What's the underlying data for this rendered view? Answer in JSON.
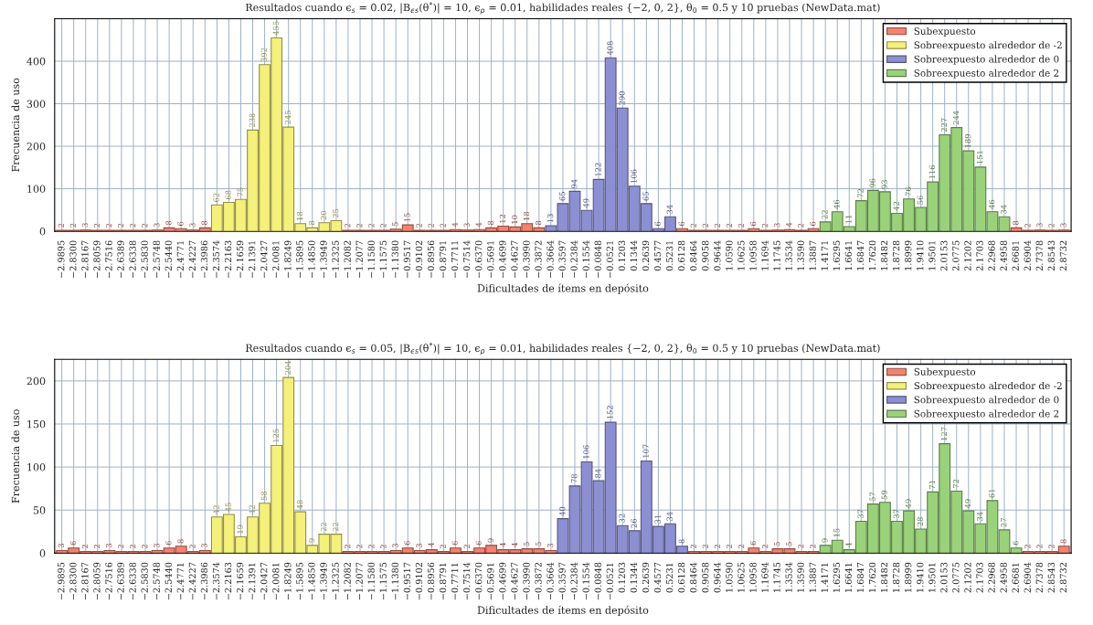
{
  "chart_data": [
    {
      "type": "bar",
      "title": "Resultados cuando ϵ$_{s}$ = 0.02, |B$_{ϵs}$(θ$^{*}$)| = 10, ϵ$_{p}$ = 0.01, habilidades reales {−2, 0, 2}, θ$_{0}$ = 0.5 y 10 pruebas (NewData.mat)",
      "xlabel": "Dificultades de ítems en depósito",
      "ylabel": "Frecuencia de uso",
      "categories": [
        "−2.9895",
        "−2.8300",
        "−2.8167",
        "−2.8059",
        "−2.7516",
        "−2.6389",
        "−2.6338",
        "−2.5830",
        "−2.5748",
        "−2.5440",
        "−2.4771",
        "−2.4227",
        "−2.3986",
        "−2.3574",
        "−2.2163",
        "−2.1659",
        "−2.1391",
        "−2.0427",
        "−2.0081",
        "−1.8249",
        "−1.5895",
        "−1.4850",
        "−1.3949",
        "−1.2325",
        "−1.2082",
        "−1.2077",
        "−1.1580",
        "−1.1575",
        "−1.1380",
        "−0.9517",
        "−0.9102",
        "−0.8956",
        "−0.8791",
        "−0.7711",
        "−0.7514",
        "−0.6370",
        "−0.5691",
        "−0.4699",
        "−0.4627",
        "−0.3990",
        "−0.3872",
        "−0.3664",
        "−0.3597",
        "−0.2384",
        "−0.1554",
        "−0.0848",
        "−0.0521",
        "0.1203",
        "0.1344",
        "0.2639",
        "0.4577",
        "0.5231",
        "0.6128",
        "0.8464",
        "0.9058",
        "0.9644",
        "1.0590",
        "1.0625",
        "1.0958",
        "1.1694",
        "1.1745",
        "1.3534",
        "1.3590",
        "1.3887",
        "1.4171",
        "1.6295",
        "1.6641",
        "1.6847",
        "1.7620",
        "1.8482",
        "1.8728",
        "1.8999",
        "1.9410",
        "1.9501",
        "2.0153",
        "2.0775",
        "2.1202",
        "2.1703",
        "2.2968",
        "2.4958",
        "2.6681",
        "2.6904",
        "2.7378",
        "2.8543",
        "2.8732"
      ],
      "series": [
        {
          "name": "Subexpuesto",
          "color": "#f4826e",
          "values": [
            2,
            2,
            3,
            2,
            2,
            2,
            2,
            2,
            3,
            8,
            6,
            3,
            8,
            null,
            null,
            null,
            null,
            null,
            null,
            null,
            null,
            null,
            null,
            null,
            2,
            2,
            2,
            2,
            5,
            15,
            2,
            2,
            2,
            4,
            3,
            4,
            8,
            12,
            10,
            18,
            8,
            null,
            null,
            null,
            null,
            null,
            null,
            null,
            null,
            null,
            null,
            null,
            6,
            2,
            2,
            2,
            2,
            2,
            6,
            2,
            3,
            4,
            2,
            6,
            null,
            null,
            null,
            null,
            null,
            null,
            null,
            null,
            null,
            null,
            null,
            null,
            null,
            null,
            null,
            null,
            8,
            2,
            3,
            2,
            3
          ]
        },
        {
          "name": "Sobreexpuesto alrededor de -2",
          "color": "#f5f07a",
          "values": [
            null,
            null,
            null,
            null,
            null,
            null,
            null,
            null,
            null,
            null,
            null,
            null,
            null,
            62,
            68,
            75,
            238,
            392,
            455,
            245,
            18,
            8,
            20,
            25,
            null,
            null,
            null,
            null,
            null,
            null,
            null,
            null,
            null,
            null,
            null,
            null,
            null,
            null,
            null,
            null,
            null,
            null,
            null,
            null,
            null,
            null,
            null,
            null,
            null,
            null,
            null,
            null,
            null,
            null,
            null,
            null,
            null,
            null,
            null,
            null,
            null,
            null,
            null,
            null,
            null,
            null,
            null,
            null,
            null,
            null,
            null,
            null,
            null,
            null,
            null,
            null,
            null,
            null,
            null,
            null,
            null,
            null,
            null,
            null,
            null
          ]
        },
        {
          "name": "Sobreexpuesto alrededor de 0",
          "color": "#8c8fd2",
          "values": [
            null,
            null,
            null,
            null,
            null,
            null,
            null,
            null,
            null,
            null,
            null,
            null,
            null,
            null,
            null,
            null,
            null,
            null,
            null,
            null,
            null,
            null,
            null,
            null,
            null,
            null,
            null,
            null,
            null,
            null,
            null,
            null,
            null,
            null,
            null,
            null,
            null,
            null,
            null,
            null,
            null,
            13,
            65,
            94,
            49,
            122,
            408,
            290,
            106,
            65,
            6,
            34,
            null,
            null,
            null,
            null,
            null,
            null,
            null,
            null,
            null,
            null,
            null,
            null,
            null,
            null,
            null,
            null,
            null,
            null,
            null,
            null,
            null,
            null,
            null,
            null,
            null,
            null,
            null,
            null,
            null,
            null,
            null,
            null,
            null
          ]
        },
        {
          "name": "Sobreexpuesto alrededor de 2",
          "color": "#9ad27a",
          "values": [
            null,
            null,
            null,
            null,
            null,
            null,
            null,
            null,
            null,
            null,
            null,
            null,
            null,
            null,
            null,
            null,
            null,
            null,
            null,
            null,
            null,
            null,
            null,
            null,
            null,
            null,
            null,
            null,
            null,
            null,
            null,
            null,
            null,
            null,
            null,
            null,
            null,
            null,
            null,
            null,
            null,
            null,
            null,
            null,
            null,
            null,
            null,
            null,
            null,
            null,
            null,
            null,
            null,
            null,
            null,
            null,
            null,
            null,
            null,
            null,
            null,
            null,
            null,
            null,
            22,
            46,
            11,
            72,
            96,
            93,
            42,
            76,
            56,
            116,
            227,
            244,
            189,
            151,
            46,
            34,
            null,
            null,
            null,
            null,
            null
          ]
        }
      ],
      "ylim": [
        0,
        500
      ],
      "yticks": [
        0,
        100,
        200,
        300,
        400
      ],
      "grid": true,
      "legend": "top right",
      "data_labels": true
    },
    {
      "type": "bar",
      "title": "Resultados cuando ϵ$_{s}$ = 0.05, |B$_{ϵs}$(θ$^{*}$)| = 10, ϵ$_{p}$ = 0.01, habilidades reales {−2, 0, 2}, θ$_{0}$ = 0.5 y 10 pruebas (NewData.mat)",
      "xlabel": "Dificultades de ítems en depósito",
      "ylabel": "Frecuencia de uso",
      "categories": [
        "−2.9895",
        "−2.8300",
        "−2.8167",
        "−2.8059",
        "−2.7516",
        "−2.6389",
        "−2.6338",
        "−2.5830",
        "−2.5748",
        "−2.5440",
        "−2.4771",
        "−2.4227",
        "−2.3986",
        "−2.3574",
        "−2.2163",
        "−2.1659",
        "−2.1391",
        "−2.0427",
        "−2.0081",
        "−1.8249",
        "−1.5895",
        "−1.4850",
        "−1.3949",
        "−1.2325",
        "−1.2082",
        "−1.2077",
        "−1.1580",
        "−1.1575",
        "−1.1380",
        "−0.9517",
        "−0.9102",
        "−0.8956",
        "−0.8791",
        "−0.7711",
        "−0.7514",
        "−0.6370",
        "−0.5691",
        "−0.4699",
        "−0.4627",
        "−0.3990",
        "−0.3872",
        "−0.3664",
        "−0.3597",
        "−0.2384",
        "−0.1554",
        "−0.0848",
        "−0.0521",
        "0.1203",
        "0.1344",
        "0.2639",
        "0.4577",
        "0.5231",
        "0.6128",
        "0.8464",
        "0.9058",
        "0.9644",
        "1.0590",
        "1.0625",
        "1.0958",
        "1.1694",
        "1.1745",
        "1.3534",
        "1.3590",
        "1.3887",
        "1.4171",
        "1.6295",
        "1.6641",
        "1.6847",
        "1.7620",
        "1.8482",
        "1.8728",
        "1.8999",
        "1.9410",
        "1.9501",
        "2.0153",
        "2.0775",
        "2.1202",
        "2.1703",
        "2.2968",
        "2.4958",
        "2.6681",
        "2.6904",
        "2.7378",
        "2.8543",
        "2.8732"
      ],
      "series": [
        {
          "name": "Subexpuesto",
          "color": "#f4826e",
          "values": [
            3,
            6,
            2,
            2,
            3,
            2,
            2,
            2,
            3,
            6,
            8,
            2,
            3,
            null,
            null,
            null,
            null,
            null,
            null,
            null,
            null,
            null,
            null,
            null,
            2,
            2,
            2,
            2,
            3,
            6,
            3,
            4,
            2,
            6,
            2,
            6,
            9,
            4,
            4,
            5,
            5,
            3,
            null,
            null,
            null,
            null,
            null,
            null,
            null,
            null,
            null,
            null,
            null,
            2,
            2,
            2,
            2,
            2,
            6,
            2,
            5,
            5,
            2,
            2,
            null,
            null,
            null,
            null,
            null,
            null,
            null,
            null,
            null,
            null,
            null,
            null,
            null,
            null,
            null,
            null,
            null,
            2,
            2,
            2,
            8
          ]
        },
        {
          "name": "Sobreexpuesto alrededor de -2",
          "color": "#f5f07a",
          "values": [
            null,
            null,
            null,
            null,
            null,
            null,
            null,
            null,
            null,
            null,
            null,
            null,
            null,
            42,
            45,
            19,
            42,
            58,
            125,
            204,
            48,
            9,
            22,
            22,
            null,
            null,
            null,
            null,
            null,
            null,
            null,
            null,
            null,
            null,
            null,
            null,
            null,
            null,
            null,
            null,
            null,
            null,
            null,
            null,
            null,
            null,
            null,
            null,
            null,
            null,
            null,
            null,
            null,
            null,
            null,
            null,
            null,
            null,
            null,
            null,
            null,
            null,
            null,
            null,
            null,
            null,
            null,
            null,
            null,
            null,
            null,
            null,
            null,
            null,
            null,
            null,
            null,
            null,
            null,
            null,
            null,
            null,
            null,
            null,
            null
          ]
        },
        {
          "name": "Sobreexpuesto alrededor de 0",
          "color": "#8c8fd2",
          "values": [
            null,
            null,
            null,
            null,
            null,
            null,
            null,
            null,
            null,
            null,
            null,
            null,
            null,
            null,
            null,
            null,
            null,
            null,
            null,
            null,
            null,
            null,
            null,
            null,
            null,
            null,
            null,
            null,
            null,
            null,
            null,
            null,
            null,
            null,
            null,
            null,
            null,
            null,
            null,
            null,
            null,
            null,
            40,
            78,
            106,
            84,
            152,
            32,
            26,
            107,
            31,
            34,
            8,
            null,
            null,
            null,
            null,
            null,
            null,
            null,
            null,
            null,
            null,
            null,
            null,
            null,
            null,
            null,
            null,
            null,
            null,
            null,
            null,
            null,
            null,
            null,
            null,
            null,
            null,
            null,
            null,
            null,
            null,
            null,
            null
          ]
        },
        {
          "name": "Sobreexpuesto alrededor de 2",
          "color": "#9ad27a",
          "values": [
            null,
            null,
            null,
            null,
            null,
            null,
            null,
            null,
            null,
            null,
            null,
            null,
            null,
            null,
            null,
            null,
            null,
            null,
            null,
            null,
            null,
            null,
            null,
            null,
            null,
            null,
            null,
            null,
            null,
            null,
            null,
            null,
            null,
            null,
            null,
            null,
            null,
            null,
            null,
            null,
            null,
            null,
            null,
            null,
            null,
            null,
            null,
            null,
            null,
            null,
            null,
            null,
            null,
            null,
            null,
            null,
            null,
            null,
            null,
            null,
            null,
            null,
            null,
            null,
            9,
            15,
            4,
            37,
            57,
            59,
            37,
            49,
            28,
            71,
            127,
            72,
            49,
            34,
            61,
            27,
            6,
            null,
            null,
            null,
            null
          ]
        }
      ],
      "ylim": [
        0,
        225
      ],
      "yticks": [
        0,
        50,
        100,
        150,
        200
      ],
      "grid": true,
      "legend": "top right",
      "data_labels": true
    }
  ]
}
